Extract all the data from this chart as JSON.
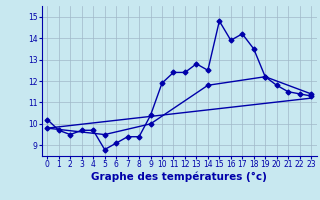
{
  "background_color": "#c8e8f0",
  "grid_color": "#a0b8c8",
  "line_color": "#0000aa",
  "xlabel": "Graphe des températures (°c)",
  "xlabel_fontsize": 7.5,
  "yticks": [
    9,
    10,
    11,
    12,
    13,
    14,
    15
  ],
  "xticks": [
    0,
    1,
    2,
    3,
    4,
    5,
    6,
    7,
    8,
    9,
    10,
    11,
    12,
    13,
    14,
    15,
    16,
    17,
    18,
    19,
    20,
    21,
    22,
    23
  ],
  "ylim": [
    8.5,
    15.5
  ],
  "xlim": [
    -0.5,
    23.5
  ],
  "series1_x": [
    0,
    1,
    2,
    3,
    4,
    5,
    6,
    7,
    8,
    9,
    10,
    11,
    12,
    13,
    14,
    15,
    16,
    17,
    18,
    19,
    20,
    21,
    22,
    23
  ],
  "series1_y": [
    10.2,
    9.7,
    9.5,
    9.7,
    9.7,
    8.8,
    9.1,
    9.4,
    9.4,
    10.4,
    11.9,
    12.4,
    12.4,
    12.8,
    12.5,
    14.8,
    13.9,
    14.2,
    13.5,
    12.2,
    11.8,
    11.5,
    11.4,
    11.3
  ],
  "series2_x": [
    0,
    5,
    9,
    14,
    19,
    23
  ],
  "series2_y": [
    9.8,
    9.5,
    10.0,
    11.8,
    12.2,
    11.4
  ],
  "series3_x": [
    0,
    23
  ],
  "series3_y": [
    9.8,
    11.2
  ],
  "marker": "D",
  "marker_size": 2.5,
  "linewidth": 1.0
}
